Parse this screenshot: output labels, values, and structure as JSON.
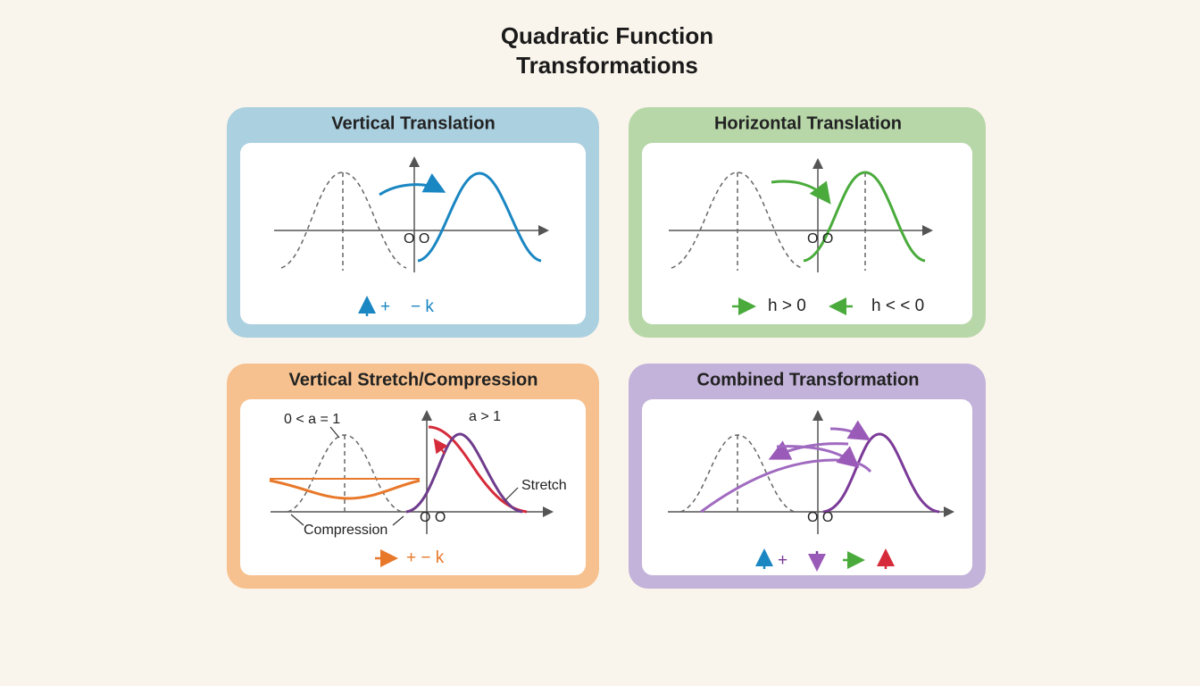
{
  "title": "Quadratic Function Transformations",
  "panels": [
    {
      "title": "Vertical Translation",
      "origin_label": "O O",
      "legend": [
        "+",
        "− k"
      ]
    },
    {
      "title": "Horizontal Translation",
      "origin_label": "O O",
      "legend": [
        "h > 0",
        "h < < 0"
      ]
    },
    {
      "title": "Vertical Stretch/Compression",
      "origin_label": "O O",
      "annotations": [
        "0 < a = 1",
        "a > 1",
        "Stretch",
        "Compression"
      ],
      "legend": [
        "+ − k"
      ]
    },
    {
      "title": "Combined Transformation",
      "origin_label": "O O",
      "legend": [
        "+"
      ]
    }
  ]
}
